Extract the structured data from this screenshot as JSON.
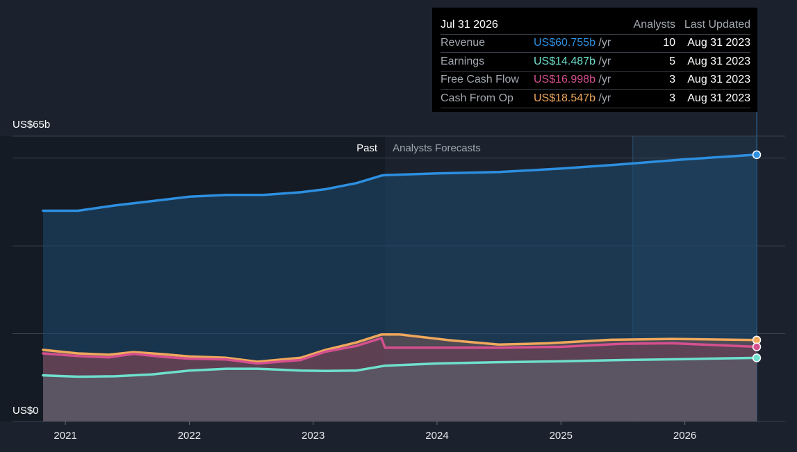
{
  "tooltip": {
    "date": "Jul 31 2026",
    "col_analysts": "Analysts",
    "col_updated": "Last Updated",
    "rows": [
      {
        "label": "Revenue",
        "value": "US$60.755b",
        "unit": "/yr",
        "analysts": "10",
        "updated": "Aug 31 2023",
        "color": "#2d8fe0"
      },
      {
        "label": "Earnings",
        "value": "US$14.487b",
        "unit": "/yr",
        "analysts": "5",
        "updated": "Aug 31 2023",
        "color": "#6ee0cd"
      },
      {
        "label": "Free Cash Flow",
        "value": "US$16.998b",
        "unit": "/yr",
        "analysts": "3",
        "updated": "Aug 31 2023",
        "color": "#d5508f"
      },
      {
        "label": "Cash From Op",
        "value": "US$18.547b",
        "unit": "/yr",
        "analysts": "3",
        "updated": "Aug 31 2023",
        "color": "#f0a85c"
      }
    ]
  },
  "chart_data": {
    "type": "area",
    "ylabel_top": "US$65b",
    "ylabel_bottom": "US$0",
    "ylim": [
      0,
      65
    ],
    "xlim": [
      2020.82,
      2026.58
    ],
    "x_ticks": [
      2021,
      2022,
      2023,
      2024,
      2025,
      2026
    ],
    "x_tick_labels": [
      "2021",
      "2022",
      "2023",
      "2024",
      "2025",
      "2026"
    ],
    "past_label": "Past",
    "forecast_label": "Analysts Forecasts",
    "past_end": 2023.58,
    "highlight_start": 2025.58,
    "series": [
      {
        "name": "Revenue",
        "color": "#2d8fe0",
        "fill": "#1d4a70",
        "points": [
          [
            2020.82,
            48.0
          ],
          [
            2021.1,
            48.0
          ],
          [
            2021.4,
            49.2
          ],
          [
            2021.7,
            50.2
          ],
          [
            2022.0,
            51.2
          ],
          [
            2022.3,
            51.6
          ],
          [
            2022.6,
            51.6
          ],
          [
            2022.9,
            52.2
          ],
          [
            2023.1,
            52.9
          ],
          [
            2023.35,
            54.3
          ],
          [
            2023.55,
            56.0
          ],
          [
            2023.58,
            56.1
          ],
          [
            2024.0,
            56.5
          ],
          [
            2024.5,
            56.8
          ],
          [
            2025.0,
            57.6
          ],
          [
            2025.5,
            58.6
          ],
          [
            2026.0,
            59.7
          ],
          [
            2026.58,
            60.755
          ]
        ]
      },
      {
        "name": "Cash From Op",
        "color": "#f0a85c",
        "fill": "#7a5a55",
        "points": [
          [
            2020.82,
            16.3
          ],
          [
            2021.1,
            15.5
          ],
          [
            2021.35,
            15.2
          ],
          [
            2021.55,
            15.8
          ],
          [
            2021.8,
            15.3
          ],
          [
            2022.0,
            14.8
          ],
          [
            2022.3,
            14.5
          ],
          [
            2022.55,
            13.6
          ],
          [
            2022.9,
            14.5
          ],
          [
            2023.1,
            16.3
          ],
          [
            2023.35,
            18.0
          ],
          [
            2023.55,
            19.8
          ],
          [
            2023.7,
            19.8
          ],
          [
            2024.1,
            18.5
          ],
          [
            2024.5,
            17.5
          ],
          [
            2024.9,
            17.8
          ],
          [
            2025.4,
            18.6
          ],
          [
            2025.9,
            18.8
          ],
          [
            2026.58,
            18.547
          ]
        ]
      },
      {
        "name": "Free Cash Flow",
        "color": "#d5508f",
        "fill": "#6a3a55",
        "points": [
          [
            2020.82,
            15.5
          ],
          [
            2021.1,
            14.9
          ],
          [
            2021.35,
            14.6
          ],
          [
            2021.55,
            15.4
          ],
          [
            2021.8,
            14.7
          ],
          [
            2022.0,
            14.3
          ],
          [
            2022.3,
            14.1
          ],
          [
            2022.55,
            13.2
          ],
          [
            2022.9,
            14.0
          ],
          [
            2023.1,
            15.9
          ],
          [
            2023.35,
            17.2
          ],
          [
            2023.55,
            19.0
          ],
          [
            2023.58,
            16.8
          ],
          [
            2024.0,
            16.8
          ],
          [
            2024.5,
            16.8
          ],
          [
            2025.0,
            17.0
          ],
          [
            2025.5,
            17.7
          ],
          [
            2025.9,
            17.8
          ],
          [
            2026.58,
            16.998
          ]
        ]
      },
      {
        "name": "Earnings",
        "color": "#6ee0cd",
        "fill": "#5a6470",
        "points": [
          [
            2020.82,
            10.5
          ],
          [
            2021.1,
            10.2
          ],
          [
            2021.4,
            10.3
          ],
          [
            2021.7,
            10.7
          ],
          [
            2022.0,
            11.6
          ],
          [
            2022.3,
            12.0
          ],
          [
            2022.55,
            12.0
          ],
          [
            2022.9,
            11.6
          ],
          [
            2023.1,
            11.5
          ],
          [
            2023.35,
            11.6
          ],
          [
            2023.58,
            12.7
          ],
          [
            2024.0,
            13.2
          ],
          [
            2024.5,
            13.5
          ],
          [
            2025.0,
            13.7
          ],
          [
            2025.5,
            14.0
          ],
          [
            2026.0,
            14.2
          ],
          [
            2026.58,
            14.487
          ]
        ]
      }
    ]
  }
}
